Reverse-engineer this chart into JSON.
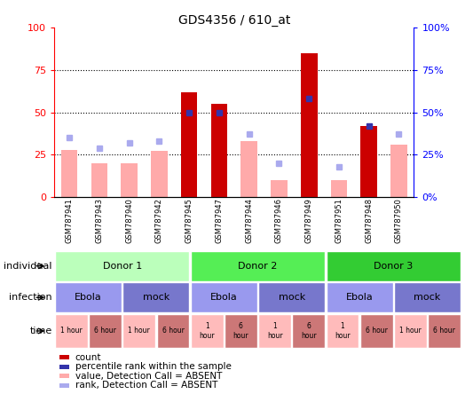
{
  "title": "GDS4356 / 610_at",
  "samples": [
    "GSM787941",
    "GSM787943",
    "GSM787940",
    "GSM787942",
    "GSM787945",
    "GSM787947",
    "GSM787944",
    "GSM787946",
    "GSM787949",
    "GSM787951",
    "GSM787948",
    "GSM787950"
  ],
  "count_values": [
    0,
    0,
    0,
    0,
    62,
    55,
    0,
    0,
    85,
    0,
    42,
    0
  ],
  "count_color": "#cc0000",
  "absent_bar_values": [
    28,
    20,
    20,
    27,
    0,
    0,
    33,
    10,
    0,
    10,
    0,
    31
  ],
  "absent_bar_color": "#ffaaaa",
  "absent_rank_values": [
    35,
    29,
    32,
    33,
    0,
    0,
    37,
    20,
    0,
    18,
    0,
    37
  ],
  "absent_rank_color": "#aaaaee",
  "blue_square_samples": [
    4,
    5,
    8,
    10
  ],
  "blue_square_values": [
    50,
    50,
    58,
    42
  ],
  "blue_square_color": "#3333aa",
  "ylim": [
    0,
    100
  ],
  "yticks": [
    0,
    25,
    50,
    75,
    100
  ],
  "chart_bg": "#ffffff",
  "donor_groups": [
    {
      "label": "Donor 1",
      "start": 0,
      "end": 4,
      "color": "#bbffbb"
    },
    {
      "label": "Donor 2",
      "start": 4,
      "end": 8,
      "color": "#55ee55"
    },
    {
      "label": "Donor 3",
      "start": 8,
      "end": 12,
      "color": "#33cc33"
    }
  ],
  "infection_groups": [
    {
      "label": "Ebola",
      "start": 0,
      "end": 2,
      "color": "#9999ee"
    },
    {
      "label": "mock",
      "start": 2,
      "end": 4,
      "color": "#7777cc"
    },
    {
      "label": "Ebola",
      "start": 4,
      "end": 6,
      "color": "#9999ee"
    },
    {
      "label": "mock",
      "start": 6,
      "end": 8,
      "color": "#7777cc"
    },
    {
      "label": "Ebola",
      "start": 8,
      "end": 10,
      "color": "#9999ee"
    },
    {
      "label": "mock",
      "start": 10,
      "end": 12,
      "color": "#7777cc"
    }
  ],
  "time_labels": [
    "1 hour",
    "6 hour",
    "1 hour",
    "6 hour",
    "1\nhour",
    "6\nhour",
    "1\nhour",
    "6\nhour",
    "1\nhour",
    "6 hour",
    "1 hour",
    "6 hour"
  ],
  "time_colors": [
    "#ffbbbb",
    "#cc7777",
    "#ffbbbb",
    "#cc7777",
    "#ffbbbb",
    "#cc7777",
    "#ffbbbb",
    "#cc7777",
    "#ffbbbb",
    "#cc7777",
    "#ffbbbb",
    "#cc7777"
  ],
  "row_labels": [
    "individual",
    "infection",
    "time"
  ],
  "legend_items": [
    {
      "color": "#cc0000",
      "label": "count"
    },
    {
      "color": "#3333aa",
      "label": "percentile rank within the sample"
    },
    {
      "color": "#ffaaaa",
      "label": "value, Detection Call = ABSENT"
    },
    {
      "color": "#aaaaee",
      "label": "rank, Detection Call = ABSENT"
    }
  ],
  "background_color": "#ffffff"
}
